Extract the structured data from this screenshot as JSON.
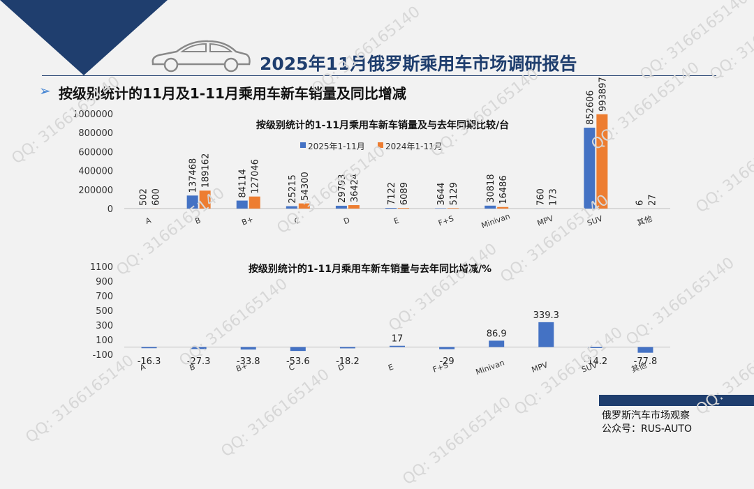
{
  "header": {
    "title": "2025年11月俄罗斯乘用车市场调研报告",
    "subtitle": "按级别统计的11月及1-11月乘用车新车销量及同比增减"
  },
  "footer": {
    "line1": "俄罗斯汽车市场观察",
    "line2": "公众号：RUS-AUTO"
  },
  "watermark": "QQ: 3166165140",
  "colors": {
    "navy": "#1f3e6e",
    "series2025": "#4472c4",
    "series2024": "#ed7d31"
  },
  "chart_data": [
    {
      "type": "bar",
      "title": "按级别统计的1-11月乘用车新车销量及与去年同期比较/台",
      "categories": [
        "A",
        "B",
        "B+",
        "C",
        "D",
        "E",
        "F+S",
        "Minivan",
        "MPV",
        "SUV",
        "其他"
      ],
      "series": [
        {
          "name": "2025年1-11月",
          "values": [
            502,
            137468,
            84114,
            25215,
            29793,
            7122,
            3644,
            30818,
            760,
            852606,
            6
          ]
        },
        {
          "name": "2024年1-11月",
          "values": [
            600,
            189162,
            127046,
            54300,
            36424,
            6089,
            5129,
            16486,
            173,
            993897,
            27
          ]
        }
      ],
      "yticks": [
        "0",
        "200000",
        "400000",
        "600000",
        "800000",
        "1000000"
      ],
      "ylim": [
        0,
        1000000
      ],
      "legend": "top-center"
    },
    {
      "type": "bar",
      "title": "按级别统计的1-11月乘用车新车销量与去年同比增减/%",
      "categories": [
        "A",
        "B",
        "B+",
        "C",
        "D",
        "E",
        "F+S",
        "Minivan",
        "MPV",
        "SUV",
        "其他"
      ],
      "series": [
        {
          "values": [
            -16.3,
            -27.3,
            -33.8,
            -53.6,
            -18.2,
            17,
            -29,
            86.9,
            339.3,
            -14.2,
            -77.8
          ]
        }
      ],
      "value_labels": [
        "-16.3",
        "-27.3",
        "-33.8",
        "-53.6",
        "-18.2",
        "17",
        "-29",
        "86.9",
        "339.3",
        "-14.2",
        "-77.8"
      ],
      "yticks": [
        "-100",
        "100",
        "300",
        "500",
        "700",
        "900",
        "1100"
      ],
      "ylim": [
        -100,
        1100
      ]
    }
  ]
}
